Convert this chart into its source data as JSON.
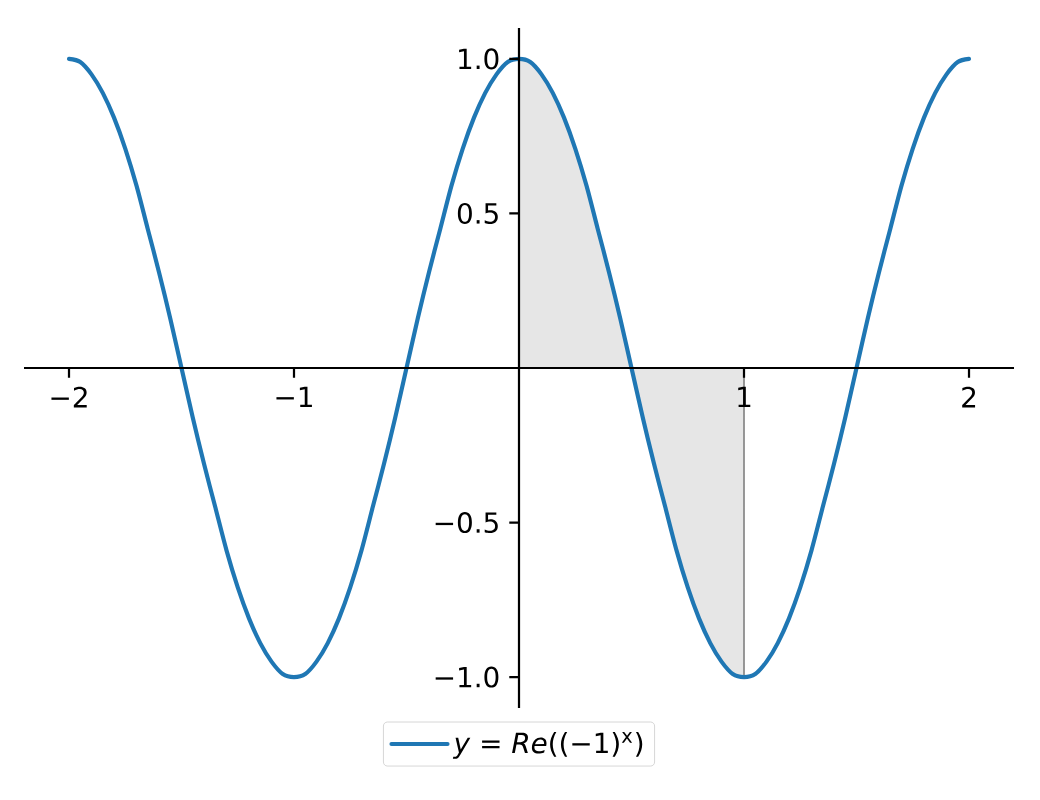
{
  "chart_data": {
    "type": "line",
    "x": [
      -2,
      -1.95,
      -1.9,
      -1.85,
      -1.8,
      -1.75,
      -1.7,
      -1.65,
      -1.6,
      -1.55,
      -1.5,
      -1.45,
      -1.4,
      -1.35,
      -1.3,
      -1.25,
      -1.2,
      -1.15,
      -1.1,
      -1.05,
      -1,
      -0.95,
      -0.9,
      -0.85,
      -0.8,
      -0.75,
      -0.7,
      -0.65,
      -0.6,
      -0.55,
      -0.5,
      -0.45,
      -0.4,
      -0.35,
      -0.3,
      -0.25,
      -0.2,
      -0.15,
      -0.1,
      -0.05,
      0,
      0.05,
      0.1,
      0.15,
      0.2,
      0.25,
      0.3,
      0.35,
      0.4,
      0.45,
      0.5,
      0.55,
      0.6,
      0.65,
      0.7,
      0.75,
      0.8,
      0.85,
      0.9,
      0.95,
      1,
      1.05,
      1.1,
      1.15,
      1.2,
      1.25,
      1.3,
      1.35,
      1.4,
      1.45,
      1.5,
      1.55,
      1.6,
      1.65,
      1.7,
      1.75,
      1.8,
      1.85,
      1.9,
      1.95,
      2
    ],
    "series": [
      {
        "name": "*y* = *Re*((−1)$^{x}$)",
        "color": "#1f77b4",
        "values": [
          1,
          0.99,
          0.95,
          0.89,
          0.81,
          0.71,
          0.59,
          0.45,
          0.31,
          0.16,
          0,
          -0.16,
          -0.31,
          -0.45,
          -0.59,
          -0.71,
          -0.81,
          -0.89,
          -0.95,
          -0.99,
          -1,
          -0.99,
          -0.95,
          -0.89,
          -0.81,
          -0.71,
          -0.59,
          -0.45,
          -0.31,
          -0.16,
          0,
          0.16,
          0.31,
          0.45,
          0.59,
          0.71,
          0.81,
          0.89,
          0.95,
          0.99,
          1,
          0.99,
          0.95,
          0.89,
          0.81,
          0.71,
          0.59,
          0.45,
          0.31,
          0.16,
          0,
          -0.16,
          -0.31,
          -0.45,
          -0.59,
          -0.71,
          -0.81,
          -0.89,
          -0.95,
          -0.99,
          -1,
          -0.99,
          -0.95,
          -0.89,
          -0.81,
          -0.71,
          -0.59,
          -0.45,
          -0.31,
          -0.16,
          0,
          0.16,
          0.31,
          0.45,
          0.59,
          0.71,
          0.81,
          0.89,
          0.95,
          0.99,
          1
        ]
      },
      {
        "type": "area",
        "color": "#e6e6e6",
        "x": [
          0,
          0.05,
          0.1,
          0.15,
          0.2,
          0.25,
          0.3,
          0.35,
          0.4,
          0.45,
          0.5,
          0.55,
          0.6,
          0.65,
          0.7,
          0.75,
          0.8,
          0.85,
          0.9,
          0.95,
          1
        ],
        "values": [
          1,
          0.99,
          0.95,
          0.89,
          0.81,
          0.71,
          0.59,
          0.45,
          0.31,
          0.16,
          0,
          -0.16,
          -0.31,
          -0.45,
          -0.59,
          -0.71,
          -0.81,
          -0.89,
          -0.95,
          -0.99,
          -1
        ]
      }
    ],
    "xlim": [
      -2.2,
      2.2
    ],
    "ylim": [
      -1.1,
      1.1
    ],
    "xticks": [
      {
        "value": -2,
        "label": "−2"
      },
      {
        "value": -1,
        "label": "−1"
      },
      {
        "value": 1,
        "label": "1"
      },
      {
        "value": 2,
        "label": "2"
      }
    ],
    "yticks": [
      {
        "value": -1,
        "label": "−1.0"
      },
      {
        "value": -0.5,
        "label": "−0.5"
      },
      {
        "value": 0.5,
        "label": "0.5"
      },
      {
        "value": 1,
        "label": "1.0"
      }
    ],
    "legend": "bottom"
  }
}
